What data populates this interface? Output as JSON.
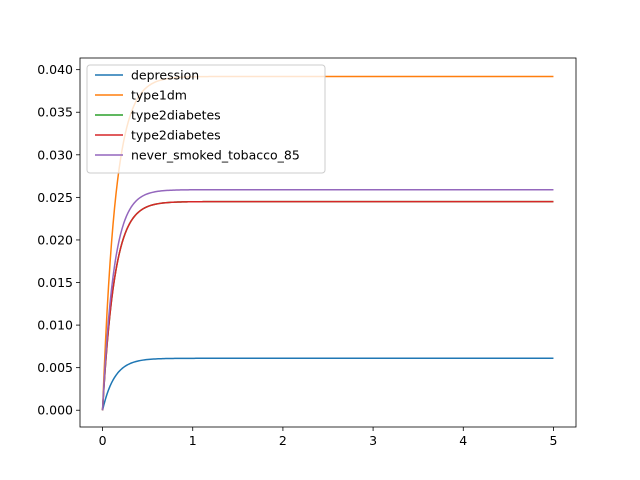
{
  "chart_data": {
    "type": "line",
    "title": "",
    "xlabel": "",
    "ylabel": "",
    "xlim": [
      -0.25,
      5.25
    ],
    "ylim": [
      -0.00197,
      0.04137
    ],
    "xticks": [
      0,
      1,
      2,
      3,
      4,
      5
    ],
    "yticks": [
      0.0,
      0.005,
      0.01,
      0.015,
      0.02,
      0.025,
      0.03,
      0.035,
      0.04
    ],
    "ytick_labels": [
      "0.000",
      "0.005",
      "0.010",
      "0.015",
      "0.020",
      "0.025",
      "0.030",
      "0.035",
      "0.040"
    ],
    "grid": false,
    "legend_position": "upper left",
    "series": [
      {
        "name": "depression",
        "color": "#1f77b4",
        "plateau": 0.0061,
        "rate": 7.5
      },
      {
        "name": "type1dm",
        "color": "#ff7f0e",
        "plateau": 0.0392,
        "rate": 7.0
      },
      {
        "name": "type2diabetes",
        "color": "#2ca02c",
        "plateau": 0.0245,
        "rate": 7.5
      },
      {
        "name": "type2diabetes",
        "color": "#d62728",
        "plateau": 0.0245,
        "rate": 7.5
      },
      {
        "name": "never_smoked_tobacco_85",
        "color": "#9467bd",
        "plateau": 0.0259,
        "rate": 8.0
      }
    ],
    "x_start": 0,
    "x_end": 5
  }
}
